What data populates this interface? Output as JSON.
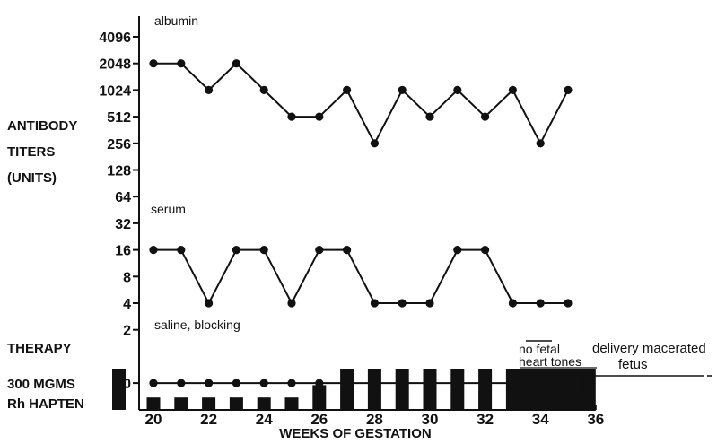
{
  "chart_data": {
    "type": "line",
    "ylabel_lines": [
      "ANTIBODY",
      "TITERS",
      "(UNITS)"
    ],
    "xlabel": "WEEKS OF GESTATION",
    "x_ticks": [
      20,
      22,
      24,
      26,
      28,
      30,
      32,
      34,
      36
    ],
    "xlim": [
      18.8,
      36
    ],
    "y_ticks": [
      4096,
      2048,
      1024,
      512,
      256,
      128,
      64,
      32,
      16,
      8,
      4,
      2,
      0
    ],
    "y_scale": "log2",
    "grid": false,
    "series": [
      {
        "name": "albumin",
        "x": [
          20,
          21,
          22,
          23,
          24,
          25,
          26,
          27,
          28,
          29,
          30,
          31,
          32,
          33,
          34,
          35
        ],
        "y": [
          2048,
          2048,
          1024,
          2048,
          1024,
          512,
          512,
          1024,
          256,
          1024,
          512,
          1024,
          512,
          1024,
          256,
          1024
        ]
      },
      {
        "name": "serum",
        "x": [
          20,
          21,
          22,
          23,
          24,
          25,
          26,
          27,
          28,
          29,
          30,
          31,
          32,
          33,
          34,
          35
        ],
        "y": [
          16,
          16,
          4,
          16,
          16,
          4,
          16,
          16,
          4,
          4,
          4,
          16,
          16,
          4,
          4,
          4
        ]
      },
      {
        "name": "saline, blocking",
        "x": [
          20,
          21,
          22,
          23,
          24,
          25,
          26,
          27,
          28,
          29,
          30,
          31,
          32,
          33,
          34,
          35
        ],
        "y": [
          0,
          0,
          0,
          0,
          0,
          0,
          0,
          0,
          0,
          0,
          0,
          0,
          0,
          0,
          0,
          0
        ]
      }
    ],
    "therapy": {
      "label": "THERAPY",
      "zero_label": "0",
      "dose_label_lines": [
        "300 MGMS",
        "Rh HAPTEN"
      ],
      "bars": [
        {
          "x": 18.9,
          "level": 1.0
        },
        {
          "x": 20,
          "level": 0.3
        },
        {
          "x": 21,
          "level": 0.3
        },
        {
          "x": 22,
          "level": 0.3
        },
        {
          "x": 23,
          "level": 0.3
        },
        {
          "x": 24,
          "level": 0.3
        },
        {
          "x": 25,
          "level": 0.3
        },
        {
          "x": 26,
          "level": 0.6
        },
        {
          "x": 27,
          "level": 1.0
        },
        {
          "x": 28,
          "level": 1.0
        },
        {
          "x": 29,
          "level": 1.0
        },
        {
          "x": 30,
          "level": 1.0
        },
        {
          "x": 31,
          "level": 1.0
        },
        {
          "x": 32,
          "level": 1.0
        }
      ],
      "continuous_bar": {
        "x_start": 33,
        "x_end": 36,
        "level": 1.0
      }
    },
    "annotations": {
      "no_fetal_lines": [
        "no fetal",
        "heart tones"
      ],
      "delivery_lines": [
        "delivery macerated",
        "fetus"
      ]
    }
  }
}
